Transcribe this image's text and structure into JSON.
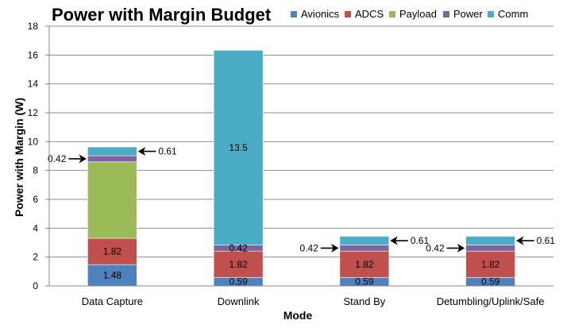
{
  "chart_data": {
    "type": "bar",
    "stacked": true,
    "title": "Power with Margin Budget",
    "xlabel": "Mode",
    "ylabel": "Power with Margin (W)",
    "ylim": [
      0,
      18
    ],
    "yticks": [
      "0",
      "2",
      "4",
      "6",
      "8",
      "10",
      "12",
      "14",
      "16",
      "18"
    ],
    "categories": [
      "Data Capture",
      "Downlink",
      "Stand By",
      "Detumbling/Uplink/Safe"
    ],
    "series": [
      {
        "name": "Avionics",
        "color": "#4F81BD",
        "values": [
          1.48,
          0.59,
          0.59,
          0.59
        ]
      },
      {
        "name": "ADCS",
        "color": "#C0504D",
        "values": [
          1.82,
          1.82,
          1.82,
          1.82
        ]
      },
      {
        "name": "Payload",
        "color": "#9BBB59",
        "values": [
          5.3,
          0,
          0,
          0
        ]
      },
      {
        "name": "Power",
        "color": "#8064A2",
        "values": [
          0.42,
          0.42,
          0.42,
          0.42
        ]
      },
      {
        "name": "Comm",
        "color": "#4BACC6",
        "values": [
          0.61,
          13.5,
          0.61,
          0.61
        ]
      }
    ],
    "data_labels": [
      [
        "1.48",
        "1.82",
        "",
        "",
        ""
      ],
      [
        "0.59",
        "1.82",
        "",
        "0.42",
        "13.5"
      ],
      [
        "0.59",
        "1.82",
        "",
        "",
        ""
      ],
      [
        "0.59",
        "1.82",
        "",
        "",
        ""
      ]
    ],
    "annotations": [
      [
        "0.42",
        "0.61"
      ],
      [
        "",
        ""
      ],
      [
        "0.42",
        "0.61"
      ],
      [
        "0.42",
        "0.61"
      ]
    ],
    "grid": true,
    "legend": "top-right"
  }
}
